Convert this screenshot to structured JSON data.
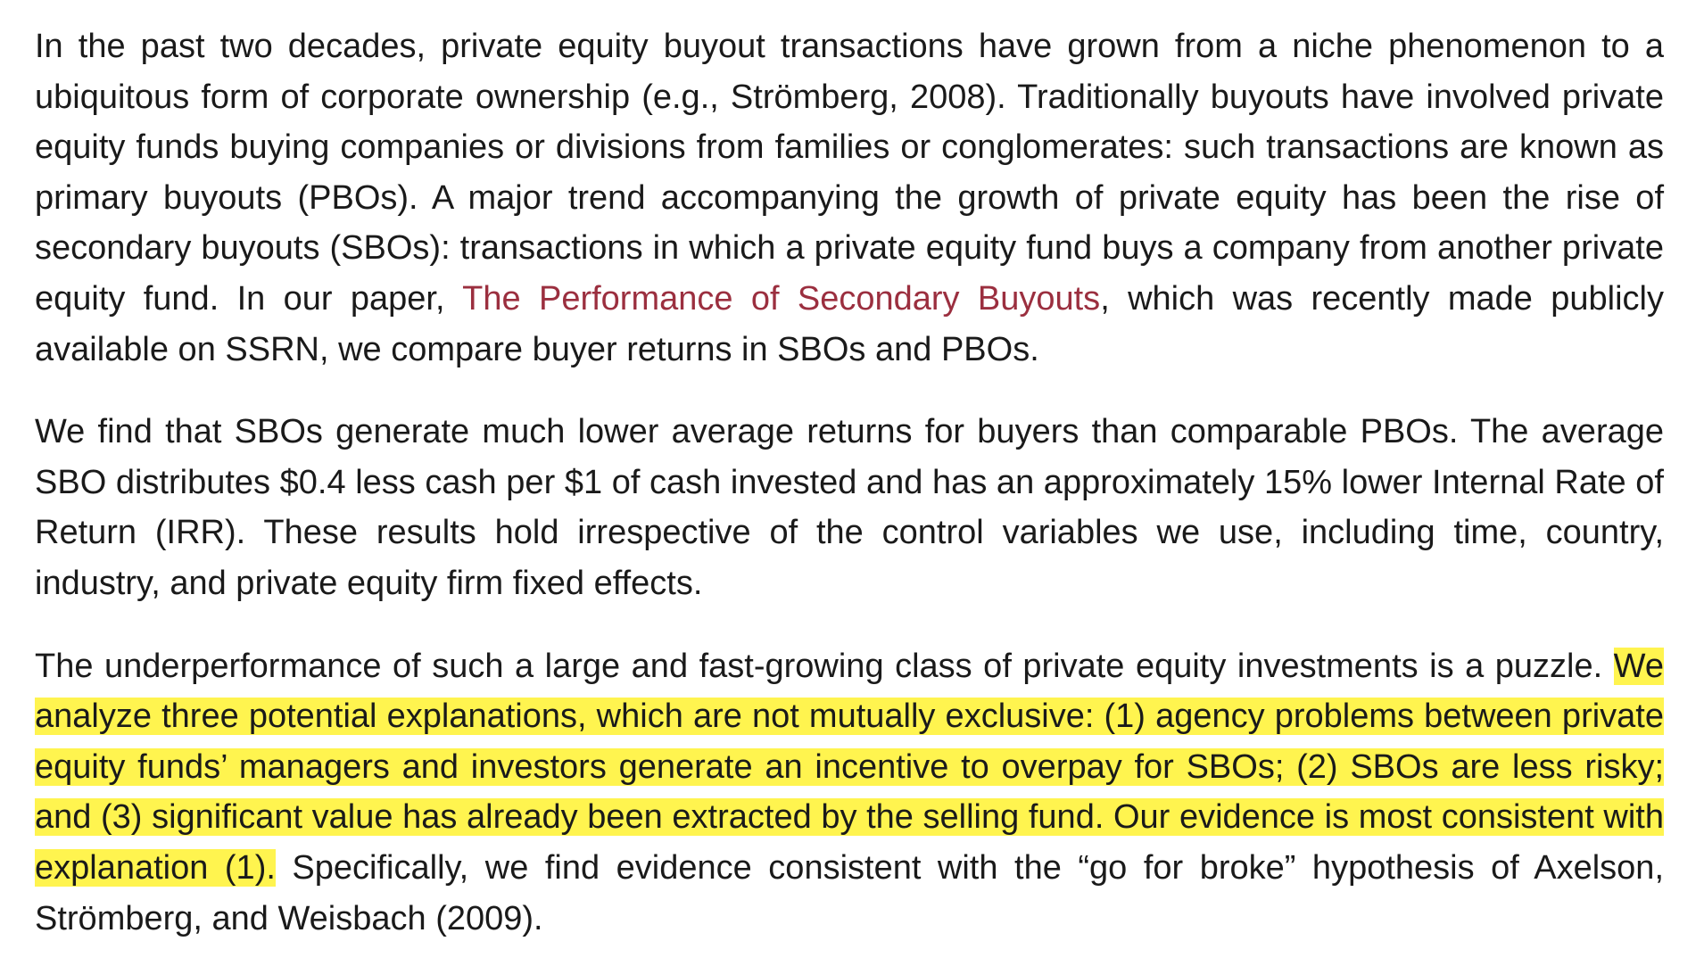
{
  "article": {
    "p1": {
      "before_link": "In the past two decades, private equity buyout transactions have grown from a niche phenomenon to a ubiquitous form of corporate ownership (e.g., Strömberg, 2008). Traditionally buyouts have involved private equity funds buying companies or divisions from families or conglomerates: such transactions are known as primary buyouts (PBOs). A major trend accompanying the growth of private equity has been the rise of secondary buyouts (SBOs): transactions in which a private equity fund buys a company from another private equity fund. In our paper, ",
      "link_text": "The Performance of Secondary Buyouts",
      "after_link": ", which was recently made publicly available on SSRN, we compare buyer returns in SBOs and PBOs."
    },
    "p2": {
      "text": "We find that SBOs generate much lower average returns for buyers than comparable PBOs. The average SBO distributes $0.4 less cash per $1 of cash invested and has an approximately 15% lower Internal Rate of Return (IRR). These results hold irrespective of the control variables we use, including time, country, industry, and private equity firm fixed effects."
    },
    "p3": {
      "before_highlight": "The underperformance of such a large and fast-growing class of private equity investments is a puzzle. ",
      "highlight": "We analyze three potential explanations, which are not mutually exclusive: (1) agency problems between private equity funds’ managers and investors generate an incentive to overpay for SBOs; (2) SBOs are less risky; and (3) significant value has already been extracted by the selling fund. Our evidence is most consistent with explanation (1).",
      "after_highlight": " Specifically, we find evidence consistent with the “go for broke” hypothesis of Axelson, Strömberg, and Weisbach (2009)."
    }
  },
  "colors": {
    "text": "#1a1a1a",
    "link": "#9b2f3f",
    "highlight": "#fff44f",
    "background": "#ffffff"
  }
}
